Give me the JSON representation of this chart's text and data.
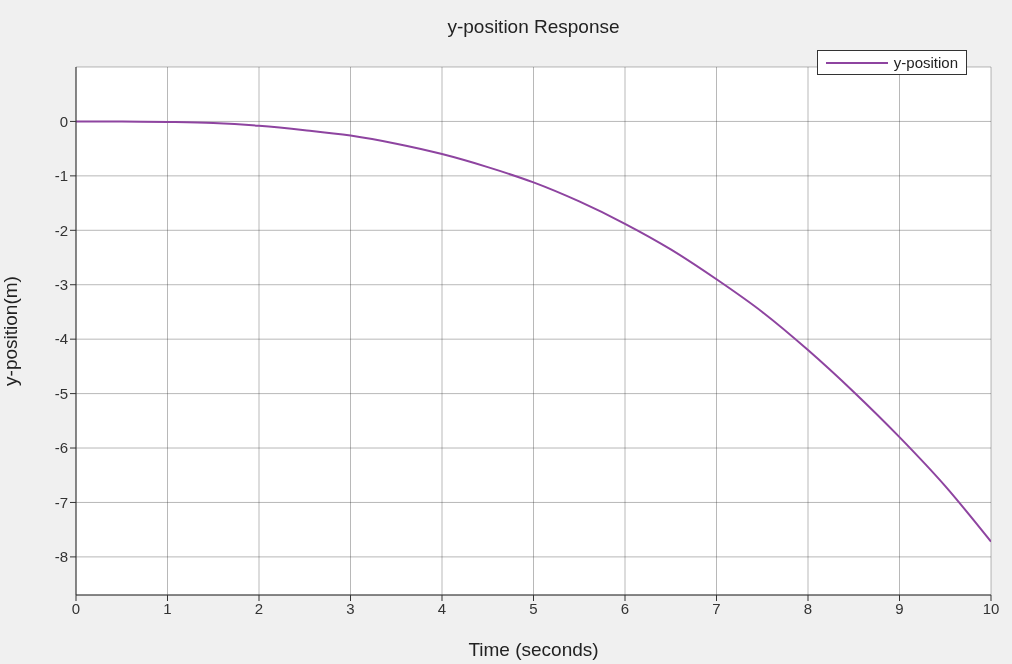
{
  "chart_data": {
    "type": "line",
    "title": "y-position Response",
    "xlabel": "Time (seconds)",
    "ylabel": "y-position(m)",
    "x": [
      0,
      0.5,
      1,
      1.5,
      2,
      2.5,
      3,
      3.5,
      4,
      4.5,
      5,
      5.5,
      6,
      6.5,
      7,
      7.5,
      8,
      8.5,
      9,
      9.5,
      10
    ],
    "series": [
      {
        "name": "y-position",
        "color": "#8e44a0",
        "values": [
          0,
          0,
          -0.01,
          -0.03,
          -0.08,
          -0.16,
          -0.26,
          -0.41,
          -0.6,
          -0.84,
          -1.12,
          -1.47,
          -1.88,
          -2.35,
          -2.9,
          -3.5,
          -4.2,
          -4.97,
          -5.8,
          -6.7,
          -7.72
        ]
      }
    ],
    "xlim": [
      0,
      10
    ],
    "xticks": [
      0,
      1,
      2,
      3,
      4,
      5,
      6,
      7,
      8,
      9,
      10
    ],
    "ylim": [
      -8.7,
      1
    ],
    "yticks": [
      -8,
      -7,
      -6,
      -5,
      -4,
      -3,
      -2,
      -1,
      0
    ],
    "grid": true,
    "legend": "top right",
    "marker": "none",
    "line_style": "solid"
  }
}
